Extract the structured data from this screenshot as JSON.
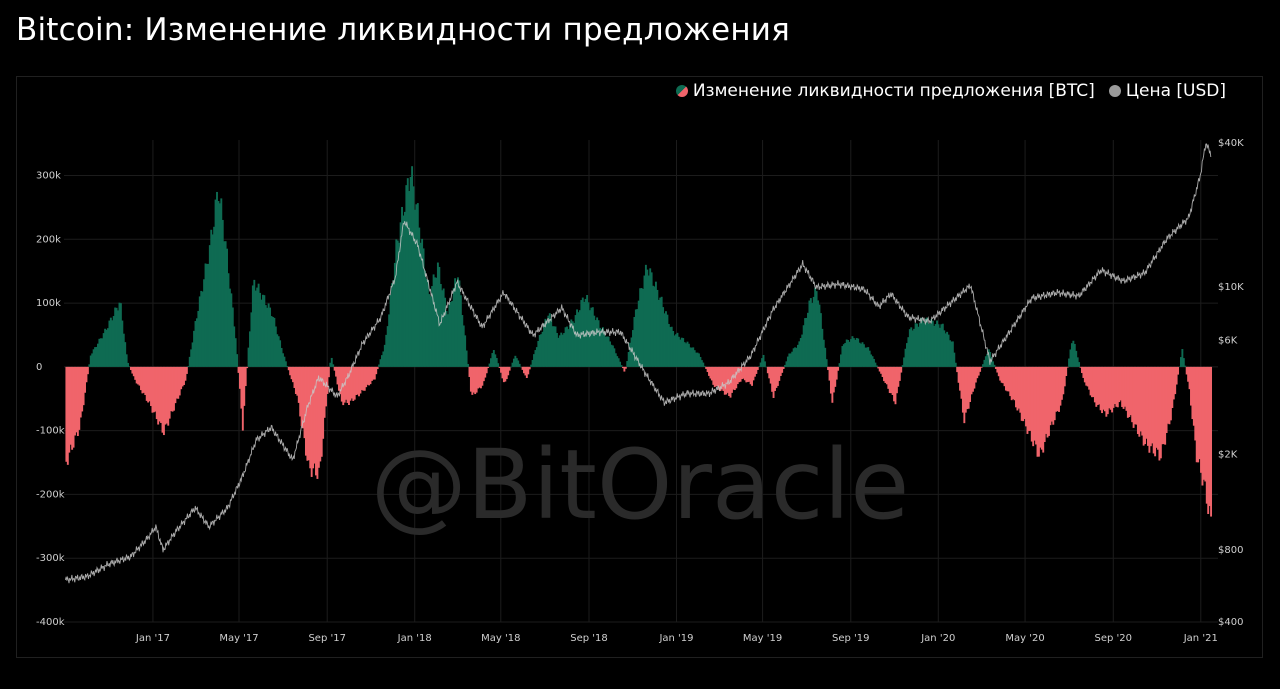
{
  "title": "Bitcoin: Изменение ликвидности предложения",
  "watermark": "@BitOracle",
  "legend": {
    "supply_label": "Изменение ликвидности предложения [BTC]",
    "price_label": "Цена [USD]"
  },
  "colors": {
    "background": "#000000",
    "positive": "#0e6b52",
    "negative": "#f0646b",
    "price_line": "#c8c8c8",
    "grid": "#1c1c1c"
  },
  "chart_data": {
    "type": "bar",
    "series": [
      {
        "name": "Изменение ликвидности предложения [BTC]",
        "type": "bar",
        "axis": "left",
        "points": [
          [
            "2016-09-01",
            -160000
          ],
          [
            "2016-09-20",
            -100000
          ],
          [
            "2016-10-05",
            20000
          ],
          [
            "2016-10-25",
            60000
          ],
          [
            "2016-11-15",
            110000
          ],
          [
            "2016-11-25",
            10000
          ],
          [
            "2016-12-05",
            -20000
          ],
          [
            "2016-12-25",
            -60000
          ],
          [
            "2017-01-15",
            -110000
          ],
          [
            "2017-02-01",
            -60000
          ],
          [
            "2017-02-15",
            -20000
          ],
          [
            "2017-03-01",
            80000
          ],
          [
            "2017-03-20",
            200000
          ],
          [
            "2017-04-01",
            300000
          ],
          [
            "2017-04-10",
            220000
          ],
          [
            "2017-04-25",
            50000
          ],
          [
            "2017-05-05",
            -100000
          ],
          [
            "2017-05-20",
            145000
          ],
          [
            "2017-06-01",
            120000
          ],
          [
            "2017-06-15",
            90000
          ],
          [
            "2017-07-01",
            20000
          ],
          [
            "2017-07-20",
            -50000
          ],
          [
            "2017-08-05",
            -170000
          ],
          [
            "2017-08-20",
            -180000
          ],
          [
            "2017-09-05",
            20000
          ],
          [
            "2017-09-20",
            -60000
          ],
          [
            "2017-10-01",
            -60000
          ],
          [
            "2017-10-20",
            -40000
          ],
          [
            "2017-11-05",
            -20000
          ],
          [
            "2017-11-20",
            40000
          ],
          [
            "2017-12-05",
            200000
          ],
          [
            "2017-12-25",
            330000
          ],
          [
            "2018-01-05",
            250000
          ],
          [
            "2018-01-20",
            120000
          ],
          [
            "2018-02-01",
            170000
          ],
          [
            "2018-02-15",
            90000
          ],
          [
            "2018-03-01",
            160000
          ],
          [
            "2018-03-20",
            -50000
          ],
          [
            "2018-04-05",
            -30000
          ],
          [
            "2018-04-20",
            30000
          ],
          [
            "2018-05-05",
            -30000
          ],
          [
            "2018-05-20",
            20000
          ],
          [
            "2018-06-05",
            -20000
          ],
          [
            "2018-06-20",
            40000
          ],
          [
            "2018-07-05",
            90000
          ],
          [
            "2018-07-20",
            50000
          ],
          [
            "2018-08-10",
            80000
          ],
          [
            "2018-08-25",
            120000
          ],
          [
            "2018-09-15",
            70000
          ],
          [
            "2018-10-01",
            40000
          ],
          [
            "2018-10-20",
            -10000
          ],
          [
            "2018-11-05",
            100000
          ],
          [
            "2018-11-20",
            170000
          ],
          [
            "2018-12-10",
            110000
          ],
          [
            "2018-12-25",
            60000
          ],
          [
            "2019-01-15",
            40000
          ],
          [
            "2019-02-01",
            20000
          ],
          [
            "2019-02-20",
            -30000
          ],
          [
            "2019-03-15",
            -50000
          ],
          [
            "2019-04-01",
            -20000
          ],
          [
            "2019-04-15",
            -30000
          ],
          [
            "2019-05-01",
            20000
          ],
          [
            "2019-05-15",
            -50000
          ],
          [
            "2019-06-05",
            20000
          ],
          [
            "2019-06-20",
            40000
          ],
          [
            "2019-07-05",
            110000
          ],
          [
            "2019-07-15",
            130000
          ],
          [
            "2019-08-05",
            -60000
          ],
          [
            "2019-08-20",
            40000
          ],
          [
            "2019-09-05",
            50000
          ],
          [
            "2019-09-25",
            30000
          ],
          [
            "2019-10-15",
            -20000
          ],
          [
            "2019-11-01",
            -60000
          ],
          [
            "2019-11-20",
            60000
          ],
          [
            "2019-12-10",
            80000
          ],
          [
            "2020-01-05",
            70000
          ],
          [
            "2020-01-20",
            40000
          ],
          [
            "2020-02-05",
            -90000
          ],
          [
            "2020-02-20",
            -30000
          ],
          [
            "2020-03-10",
            30000
          ],
          [
            "2020-03-25",
            -20000
          ],
          [
            "2020-04-15",
            -60000
          ],
          [
            "2020-05-01",
            -100000
          ],
          [
            "2020-05-20",
            -150000
          ],
          [
            "2020-06-05",
            -100000
          ],
          [
            "2020-06-20",
            -60000
          ],
          [
            "2020-07-05",
            50000
          ],
          [
            "2020-07-20",
            -20000
          ],
          [
            "2020-08-05",
            -60000
          ],
          [
            "2020-08-20",
            -80000
          ],
          [
            "2020-09-10",
            -60000
          ],
          [
            "2020-09-25",
            -90000
          ],
          [
            "2020-10-15",
            -130000
          ],
          [
            "2020-11-05",
            -150000
          ],
          [
            "2020-11-20",
            -80000
          ],
          [
            "2020-12-05",
            30000
          ],
          [
            "2020-12-15",
            -40000
          ],
          [
            "2020-12-25",
            -150000
          ],
          [
            "2021-01-05",
            -200000
          ],
          [
            "2021-01-15",
            -270000
          ]
        ]
      },
      {
        "name": "Цена [USD]",
        "type": "line",
        "axis": "right",
        "points": [
          [
            "2016-09-01",
            600
          ],
          [
            "2016-10-01",
            620
          ],
          [
            "2016-11-01",
            700
          ],
          [
            "2016-12-01",
            750
          ],
          [
            "2016-12-25",
            900
          ],
          [
            "2017-01-05",
            1000
          ],
          [
            "2017-01-15",
            800
          ],
          [
            "2017-02-01",
            950
          ],
          [
            "2017-03-01",
            1200
          ],
          [
            "2017-03-20",
            1000
          ],
          [
            "2017-04-15",
            1200
          ],
          [
            "2017-05-05",
            1600
          ],
          [
            "2017-05-25",
            2300
          ],
          [
            "2017-06-15",
            2600
          ],
          [
            "2017-07-15",
            1900
          ],
          [
            "2017-08-05",
            3200
          ],
          [
            "2017-08-20",
            4200
          ],
          [
            "2017-09-15",
            3500
          ],
          [
            "2017-10-01",
            4300
          ],
          [
            "2017-10-20",
            5800
          ],
          [
            "2017-11-15",
            7500
          ],
          [
            "2017-12-05",
            11000
          ],
          [
            "2017-12-17",
            19000
          ],
          [
            "2018-01-05",
            15000
          ],
          [
            "2018-02-05",
            7000
          ],
          [
            "2018-03-01",
            10500
          ],
          [
            "2018-04-05",
            6800
          ],
          [
            "2018-05-05",
            9500
          ],
          [
            "2018-06-15",
            6300
          ],
          [
            "2018-07-25",
            8200
          ],
          [
            "2018-08-15",
            6300
          ],
          [
            "2018-09-15",
            6500
          ],
          [
            "2018-10-15",
            6500
          ],
          [
            "2018-11-20",
            4300
          ],
          [
            "2018-12-15",
            3300
          ],
          [
            "2019-01-15",
            3600
          ],
          [
            "2019-02-15",
            3600
          ],
          [
            "2019-03-15",
            4000
          ],
          [
            "2019-04-15",
            5200
          ],
          [
            "2019-05-15",
            8000
          ],
          [
            "2019-06-26",
            12500
          ],
          [
            "2019-07-15",
            10000
          ],
          [
            "2019-08-15",
            10300
          ],
          [
            "2019-09-20",
            9800
          ],
          [
            "2019-10-10",
            8300
          ],
          [
            "2019-10-27",
            9400
          ],
          [
            "2019-11-20",
            7500
          ],
          [
            "2019-12-20",
            7200
          ],
          [
            "2020-01-20",
            8700
          ],
          [
            "2020-02-15",
            10200
          ],
          [
            "2020-03-13",
            4900
          ],
          [
            "2020-04-15",
            6900
          ],
          [
            "2020-05-10",
            9000
          ],
          [
            "2020-06-15",
            9500
          ],
          [
            "2020-07-15",
            9200
          ],
          [
            "2020-08-15",
            11800
          ],
          [
            "2020-09-15",
            10600
          ],
          [
            "2020-10-15",
            11500
          ],
          [
            "2020-11-15",
            16000
          ],
          [
            "2020-12-15",
            19500
          ],
          [
            "2020-12-31",
            29000
          ],
          [
            "2021-01-08",
            40000
          ],
          [
            "2021-01-15",
            36000
          ]
        ]
      }
    ],
    "xlim": [
      "2016-08-30",
      "2021-01-25"
    ],
    "x_ticks": [
      "Jan '17",
      "May '17",
      "Sep '17",
      "Jan '18",
      "May '18",
      "Sep '18",
      "Jan '19",
      "May '19",
      "Sep '19",
      "Jan '20",
      "May '20",
      "Sep '20",
      "Jan '21"
    ],
    "y_left_ticks": [
      "300k",
      "200k",
      "100k",
      "0",
      "-100k",
      "-200k",
      "-300k",
      "-400k"
    ],
    "y_left_lim": [
      -400000,
      340000
    ],
    "y_right_ticks": [
      "$40K",
      "$10K",
      "$6K",
      "$2K",
      "$800",
      "$400"
    ],
    "y_right_scale": "log",
    "grid": true,
    "legend_position": "top-right"
  }
}
